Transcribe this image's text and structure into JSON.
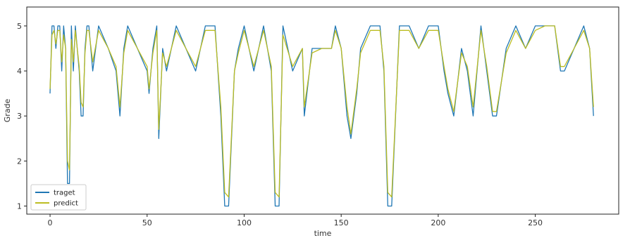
{
  "chart_data": {
    "type": "line",
    "title": "",
    "xlabel": "time",
    "ylabel": "Grade",
    "xlim": [
      -12,
      293
    ],
    "ylim": [
      0.82,
      5.42
    ],
    "xticks": [
      0,
      50,
      100,
      150,
      200,
      250
    ],
    "yticks": [
      1,
      2,
      3,
      4,
      5
    ],
    "grid": false,
    "legend_position": "lower-left",
    "legend": [
      {
        "label": "traget",
        "color": "#1f77b4"
      },
      {
        "label": "predict",
        "color": "#bcbd22"
      }
    ],
    "series": [
      {
        "name": "traget",
        "color": "#1f77b4",
        "x": [
          0,
          1,
          2,
          3,
          4,
          5,
          6,
          7,
          8,
          9,
          10,
          11,
          12,
          13,
          14,
          15,
          16,
          17,
          18,
          19,
          20,
          22,
          25,
          30,
          34,
          36,
          38,
          40,
          45,
          50,
          51,
          53,
          55,
          56,
          58,
          60,
          65,
          70,
          75,
          80,
          85,
          88,
          90,
          92,
          95,
          97,
          100,
          105,
          110,
          112,
          114,
          116,
          118,
          120,
          125,
          130,
          131,
          135,
          140,
          145,
          147,
          150,
          153,
          155,
          158,
          160,
          165,
          170,
          172,
          174,
          176,
          180,
          185,
          190,
          195,
          200,
          203,
          205,
          208,
          212,
          215,
          218,
          222,
          225,
          228,
          230,
          235,
          240,
          245,
          250,
          255,
          260,
          263,
          265,
          270,
          275,
          278,
          280
        ],
        "values": [
          3.5,
          5,
          5,
          4.5,
          5,
          5,
          4,
          5,
          4.5,
          1.5,
          1.5,
          5,
          4,
          5,
          4.5,
          4,
          3,
          3,
          4.5,
          5,
          5,
          4,
          5,
          4.5,
          4,
          3,
          4.5,
          5,
          4.5,
          4,
          3.5,
          4.5,
          5,
          2.5,
          4.5,
          4,
          5,
          4.5,
          4,
          5,
          5,
          3,
          1,
          1,
          4,
          4.5,
          5,
          4,
          5,
          4.5,
          4,
          1,
          1,
          5,
          4,
          4.5,
          3,
          4.5,
          4.5,
          4.5,
          5,
          4.5,
          3,
          2.5,
          3.5,
          4.5,
          5,
          5,
          4,
          1,
          1,
          5,
          5,
          4.5,
          5,
          5,
          4,
          3.5,
          3,
          4.5,
          4,
          3,
          5,
          4,
          3,
          3,
          4.5,
          5,
          4.5,
          5,
          5,
          5,
          4,
          4,
          4.5,
          5,
          4.5,
          3
        ]
      },
      {
        "name": "predict",
        "color": "#bcbd22",
        "x": [
          0,
          1,
          2,
          3,
          4,
          5,
          6,
          7,
          8,
          9,
          10,
          11,
          12,
          13,
          14,
          15,
          16,
          17,
          18,
          19,
          20,
          22,
          25,
          30,
          34,
          36,
          38,
          40,
          45,
          50,
          51,
          53,
          55,
          56,
          58,
          60,
          65,
          70,
          75,
          80,
          85,
          88,
          90,
          92,
          95,
          97,
          100,
          105,
          110,
          112,
          114,
          116,
          118,
          120,
          125,
          130,
          131,
          135,
          140,
          145,
          147,
          150,
          153,
          155,
          158,
          160,
          165,
          170,
          172,
          174,
          176,
          180,
          185,
          190,
          195,
          200,
          203,
          205,
          208,
          212,
          215,
          218,
          222,
          225,
          228,
          230,
          235,
          240,
          245,
          250,
          255,
          260,
          263,
          265,
          270,
          275,
          278,
          280
        ],
        "values": [
          3.6,
          4.8,
          4.9,
          4.6,
          4.9,
          4.9,
          4.2,
          4.8,
          4.5,
          2.0,
          1.8,
          4.7,
          4.2,
          4.9,
          4.5,
          4.1,
          3.3,
          3.2,
          4.4,
          4.9,
          4.9,
          4.2,
          4.9,
          4.5,
          4.1,
          3.2,
          4.4,
          4.9,
          4.5,
          4.1,
          3.6,
          4.4,
          4.9,
          2.7,
          4.4,
          4.1,
          4.9,
          4.5,
          4.1,
          4.9,
          4.9,
          3.2,
          1.3,
          1.2,
          4.0,
          4.4,
          4.9,
          4.1,
          4.9,
          4.5,
          4.1,
          1.3,
          1.2,
          4.8,
          4.1,
          4.5,
          3.2,
          4.4,
          4.5,
          4.5,
          4.9,
          4.5,
          3.2,
          2.6,
          3.6,
          4.4,
          4.9,
          4.9,
          4.1,
          1.3,
          1.2,
          4.9,
          4.9,
          4.5,
          4.9,
          4.9,
          4.1,
          3.6,
          3.1,
          4.4,
          4.1,
          3.2,
          4.9,
          4.1,
          3.1,
          3.1,
          4.4,
          4.9,
          4.5,
          4.9,
          5.0,
          5.0,
          4.1,
          4.1,
          4.5,
          4.9,
          4.5,
          3.2
        ]
      }
    ]
  }
}
